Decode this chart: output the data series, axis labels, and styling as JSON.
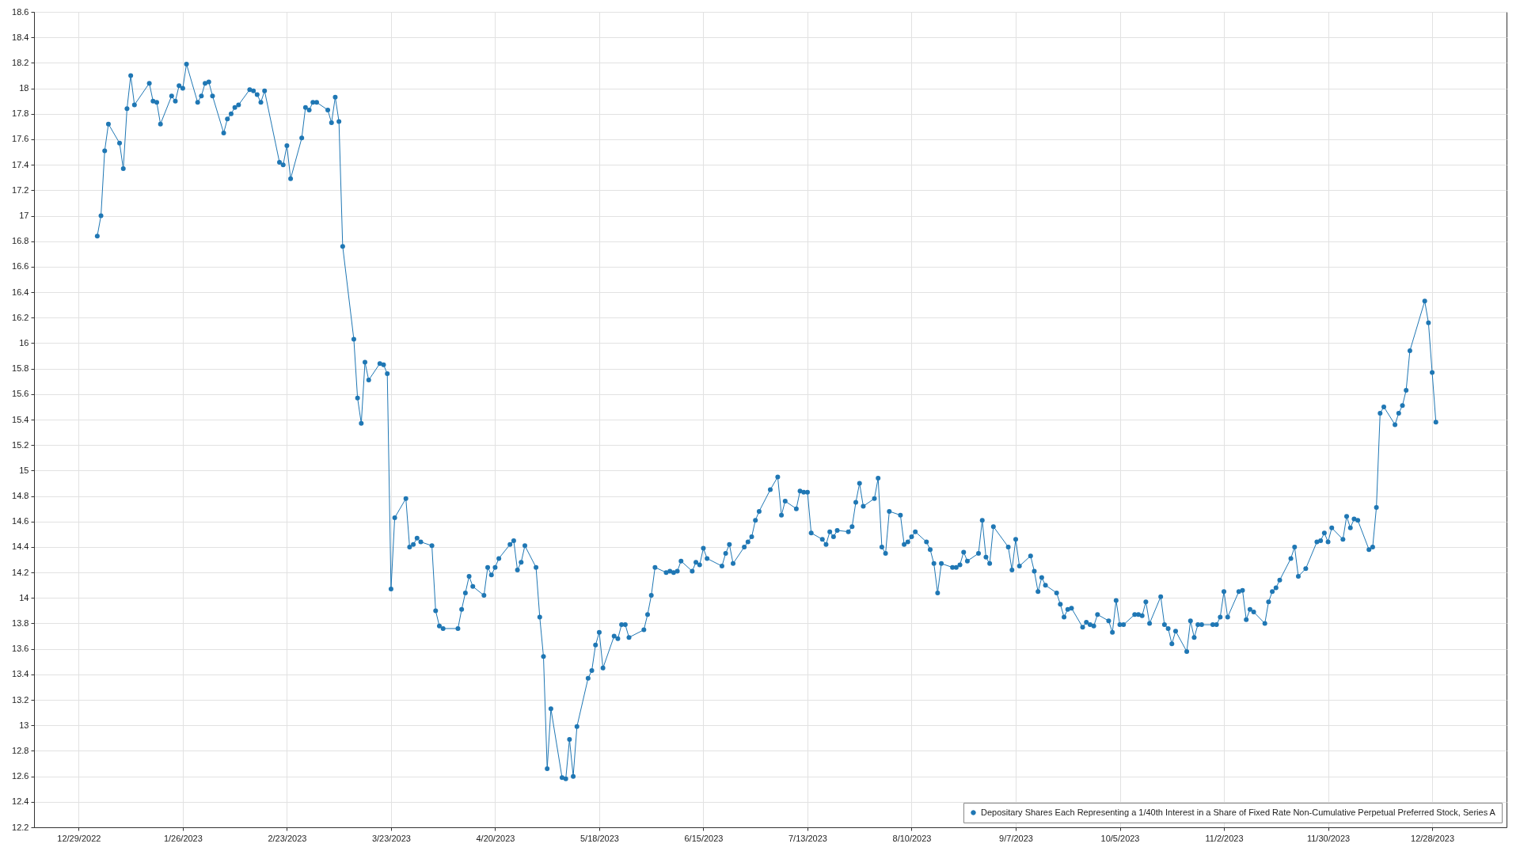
{
  "chart_data": {
    "type": "line",
    "x": [
      "2023-01-03",
      "2023-01-04",
      "2023-01-05",
      "2023-01-06",
      "2023-01-09",
      "2023-01-10",
      "2023-01-11",
      "2023-01-12",
      "2023-01-13",
      "2023-01-17",
      "2023-01-18",
      "2023-01-19",
      "2023-01-20",
      "2023-01-23",
      "2023-01-24",
      "2023-01-25",
      "2023-01-26",
      "2023-01-27",
      "2023-01-30",
      "2023-01-31",
      "2023-02-01",
      "2023-02-02",
      "2023-02-03",
      "2023-02-06",
      "2023-02-07",
      "2023-02-08",
      "2023-02-09",
      "2023-02-10",
      "2023-02-13",
      "2023-02-14",
      "2023-02-15",
      "2023-02-16",
      "2023-02-17",
      "2023-02-21",
      "2023-02-22",
      "2023-02-23",
      "2023-02-24",
      "2023-02-27",
      "2023-02-28",
      "2023-03-01",
      "2023-03-02",
      "2023-03-03",
      "2023-03-06",
      "2023-03-07",
      "2023-03-08",
      "2023-03-09",
      "2023-03-10",
      "2023-03-13",
      "2023-03-14",
      "2023-03-15",
      "2023-03-16",
      "2023-03-17",
      "2023-03-20",
      "2023-03-21",
      "2023-03-22",
      "2023-03-23",
      "2023-03-24",
      "2023-03-27",
      "2023-03-28",
      "2023-03-29",
      "2023-03-30",
      "2023-03-31",
      "2023-04-03",
      "2023-04-04",
      "2023-04-05",
      "2023-04-06",
      "2023-04-10",
      "2023-04-11",
      "2023-04-12",
      "2023-04-13",
      "2023-04-14",
      "2023-04-17",
      "2023-04-18",
      "2023-04-19",
      "2023-04-20",
      "2023-04-21",
      "2023-04-24",
      "2023-04-25",
      "2023-04-26",
      "2023-04-27",
      "2023-04-28",
      "2023-05-01",
      "2023-05-02",
      "2023-05-03",
      "2023-05-04",
      "2023-05-05",
      "2023-05-08",
      "2023-05-09",
      "2023-05-10",
      "2023-05-11",
      "2023-05-12",
      "2023-05-15",
      "2023-05-16",
      "2023-05-17",
      "2023-05-18",
      "2023-05-19",
      "2023-05-22",
      "2023-05-23",
      "2023-05-24",
      "2023-05-25",
      "2023-05-26",
      "2023-05-30",
      "2023-05-31",
      "2023-06-01",
      "2023-06-02",
      "2023-06-05",
      "2023-06-06",
      "2023-06-07",
      "2023-06-08",
      "2023-06-09",
      "2023-06-12",
      "2023-06-13",
      "2023-06-14",
      "2023-06-15",
      "2023-06-16",
      "2023-06-20",
      "2023-06-21",
      "2023-06-22",
      "2023-06-23",
      "2023-06-26",
      "2023-06-27",
      "2023-06-28",
      "2023-06-29",
      "2023-06-30",
      "2023-07-03",
      "2023-07-05",
      "2023-07-06",
      "2023-07-07",
      "2023-07-10",
      "2023-07-11",
      "2023-07-12",
      "2023-07-13",
      "2023-07-14",
      "2023-07-17",
      "2023-07-18",
      "2023-07-19",
      "2023-07-20",
      "2023-07-21",
      "2023-07-24",
      "2023-07-25",
      "2023-07-26",
      "2023-07-27",
      "2023-07-28",
      "2023-07-31",
      "2023-08-01",
      "2023-08-02",
      "2023-08-03",
      "2023-08-04",
      "2023-08-07",
      "2023-08-08",
      "2023-08-09",
      "2023-08-10",
      "2023-08-11",
      "2023-08-14",
      "2023-08-15",
      "2023-08-16",
      "2023-08-17",
      "2023-08-18",
      "2023-08-21",
      "2023-08-22",
      "2023-08-23",
      "2023-08-24",
      "2023-08-25",
      "2023-08-28",
      "2023-08-29",
      "2023-08-30",
      "2023-08-31",
      "2023-09-01",
      "2023-09-05",
      "2023-09-06",
      "2023-09-07",
      "2023-09-08",
      "2023-09-11",
      "2023-09-12",
      "2023-09-13",
      "2023-09-14",
      "2023-09-15",
      "2023-09-18",
      "2023-09-19",
      "2023-09-20",
      "2023-09-21",
      "2023-09-22",
      "2023-09-25",
      "2023-09-26",
      "2023-09-27",
      "2023-09-28",
      "2023-09-29",
      "2023-10-02",
      "2023-10-03",
      "2023-10-04",
      "2023-10-05",
      "2023-10-06",
      "2023-10-09",
      "2023-10-10",
      "2023-10-11",
      "2023-10-12",
      "2023-10-13",
      "2023-10-16",
      "2023-10-17",
      "2023-10-18",
      "2023-10-19",
      "2023-10-20",
      "2023-10-23",
      "2023-10-24",
      "2023-10-25",
      "2023-10-26",
      "2023-10-27",
      "2023-10-30",
      "2023-10-31",
      "2023-11-01",
      "2023-11-02",
      "2023-11-03",
      "2023-11-06",
      "2023-11-07",
      "2023-11-08",
      "2023-11-09",
      "2023-11-10",
      "2023-11-13",
      "2023-11-14",
      "2023-11-15",
      "2023-11-16",
      "2023-11-17",
      "2023-11-20",
      "2023-11-21",
      "2023-11-22",
      "2023-11-24",
      "2023-11-27",
      "2023-11-28",
      "2023-11-29",
      "2023-11-30",
      "2023-12-01",
      "2023-12-04",
      "2023-12-05",
      "2023-12-06",
      "2023-12-07",
      "2023-12-08",
      "2023-12-11",
      "2023-12-12",
      "2023-12-13",
      "2023-12-14",
      "2023-12-15",
      "2023-12-18",
      "2023-12-19",
      "2023-12-20",
      "2023-12-21",
      "2023-12-22",
      "2023-12-26",
      "2023-12-27",
      "2023-12-28",
      "2023-12-29"
    ],
    "series": [
      {
        "name": "Depositary Shares Each Representing a 1/40th Interest in a Share of Fixed Rate Non-Cumulative Perpetual Preferred Stock, Series A",
        "color": "#1f77b4",
        "values": [
          16.84,
          17.0,
          17.51,
          17.72,
          17.57,
          17.37,
          17.84,
          18.1,
          17.87,
          18.04,
          17.9,
          17.89,
          17.72,
          17.94,
          17.9,
          18.02,
          18.0,
          18.19,
          17.89,
          17.94,
          18.04,
          18.05,
          17.94,
          17.65,
          17.76,
          17.8,
          17.85,
          17.87,
          17.99,
          17.98,
          17.95,
          17.89,
          17.98,
          17.42,
          17.4,
          17.55,
          17.29,
          17.61,
          17.85,
          17.83,
          17.89,
          17.89,
          17.83,
          17.73,
          17.93,
          17.74,
          16.76,
          16.03,
          15.57,
          15.37,
          15.85,
          15.71,
          15.84,
          15.83,
          15.76,
          14.07,
          14.63,
          14.78,
          14.4,
          14.42,
          14.47,
          14.44,
          14.41,
          13.9,
          13.78,
          13.76,
          13.76,
          13.91,
          14.04,
          14.17,
          14.09,
          14.02,
          14.24,
          14.18,
          14.24,
          14.31,
          14.42,
          14.45,
          14.22,
          14.28,
          14.41,
          14.24,
          13.85,
          13.54,
          12.66,
          13.13,
          12.59,
          12.58,
          12.89,
          12.6,
          12.99,
          13.37,
          13.43,
          13.63,
          13.73,
          13.45,
          13.7,
          13.68,
          13.79,
          13.79,
          13.69,
          13.75,
          13.87,
          14.02,
          14.24,
          14.2,
          14.21,
          14.2,
          14.21,
          14.29,
          14.21,
          14.28,
          14.26,
          14.39,
          14.31,
          14.25,
          14.35,
          14.42,
          14.27,
          14.4,
          14.44,
          14.48,
          14.61,
          14.68,
          14.85,
          14.95,
          14.65,
          14.76,
          14.7,
          14.84,
          14.83,
          14.83,
          14.51,
          14.46,
          14.42,
          14.52,
          14.48,
          14.53,
          14.52,
          14.56,
          14.75,
          14.9,
          14.72,
          14.78,
          14.94,
          14.4,
          14.35,
          14.68,
          14.65,
          14.42,
          14.44,
          14.48,
          14.52,
          14.44,
          14.38,
          14.27,
          14.04,
          14.27,
          14.24,
          14.24,
          14.26,
          14.36,
          14.29,
          14.35,
          14.61,
          14.32,
          14.27,
          14.56,
          14.4,
          14.22,
          14.46,
          14.25,
          14.33,
          14.21,
          14.05,
          14.16,
          14.1,
          14.04,
          13.95,
          13.85,
          13.91,
          13.92,
          13.77,
          13.81,
          13.79,
          13.78,
          13.87,
          13.82,
          13.73,
          13.98,
          13.79,
          13.79,
          13.87,
          13.87,
          13.86,
          13.97,
          13.8,
          14.01,
          13.79,
          13.76,
          13.64,
          13.74,
          13.58,
          13.82,
          13.69,
          13.79,
          13.79,
          13.79,
          13.79,
          13.85,
          14.05,
          13.85,
          14.05,
          14.06,
          13.83,
          13.91,
          13.89,
          13.8,
          13.97,
          14.05,
          14.08,
          14.14,
          14.31,
          14.4,
          14.17,
          14.23,
          14.44,
          14.45,
          14.51,
          14.44,
          14.55,
          14.46,
          14.64,
          14.55,
          14.62,
          14.61,
          14.38,
          14.4,
          14.71,
          15.45,
          15.5,
          15.36,
          15.45,
          15.51,
          15.63,
          15.94,
          16.33,
          16.16,
          15.77,
          15.38
        ]
      }
    ],
    "xlim": [
      "2022-12-17",
      "2024-01-17"
    ],
    "xticks": [
      {
        "value": "2022-12-29",
        "label": "12/29/2022"
      },
      {
        "value": "2023-01-26",
        "label": "1/26/2023"
      },
      {
        "value": "2023-02-23",
        "label": "2/23/2023"
      },
      {
        "value": "2023-03-23",
        "label": "3/23/2023"
      },
      {
        "value": "2023-04-20",
        "label": "4/20/2023"
      },
      {
        "value": "2023-05-18",
        "label": "5/18/2023"
      },
      {
        "value": "2023-06-15",
        "label": "6/15/2023"
      },
      {
        "value": "2023-07-13",
        "label": "7/13/2023"
      },
      {
        "value": "2023-08-10",
        "label": "8/10/2023"
      },
      {
        "value": "2023-09-07",
        "label": "9/7/2023"
      },
      {
        "value": "2023-10-05",
        "label": "10/5/2023"
      },
      {
        "value": "2023-11-02",
        "label": "11/2/2023"
      },
      {
        "value": "2023-11-30",
        "label": "11/30/2023"
      },
      {
        "value": "2023-12-28",
        "label": "12/28/2023"
      }
    ],
    "ylim": [
      12.2,
      18.6
    ],
    "yticks": [
      12.2,
      12.4,
      12.6,
      12.8,
      13,
      13.2,
      13.4,
      13.6,
      13.8,
      14,
      14.2,
      14.4,
      14.6,
      14.8,
      15,
      15.2,
      15.4,
      15.6,
      15.8,
      16,
      16.2,
      16.4,
      16.6,
      16.8,
      17,
      17.2,
      17.4,
      17.6,
      17.8,
      18,
      18.2,
      18.4,
      18.6
    ],
    "grid": true,
    "legend": "bottom right",
    "marker": "circle",
    "line_style": "solid"
  }
}
